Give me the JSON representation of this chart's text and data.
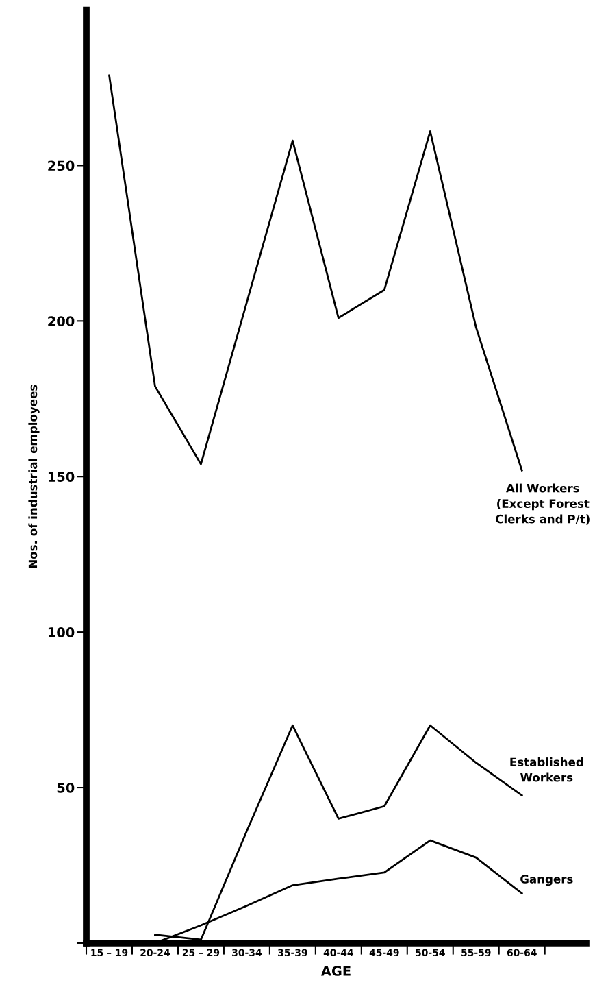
{
  "chart_data": {
    "type": "line",
    "xlabel": "AGE",
    "ylabel": "Nos. of industrial employees",
    "categories": [
      "15 – 19",
      "20-24",
      "25 – 29",
      "30-34",
      "35-39",
      "40-44",
      "45-49",
      "50-54",
      "55-59",
      "60-64"
    ],
    "series": [
      {
        "name": "All Workers\n(Except Forest\nClerks and P/t)",
        "color": "#000000",
        "values": [
          279,
          179,
          154,
          206,
          258,
          201,
          210,
          261,
          198,
          152
        ]
      },
      {
        "name": "Established\nWorkers",
        "color": "#000000",
        "values": [
          null,
          2.7,
          1.1,
          36,
          70,
          40,
          44,
          70,
          58,
          47.5
        ]
      },
      {
        "name": "Gangers",
        "color": "#000000",
        "values": [
          null,
          0,
          5.7,
          12,
          18.6,
          20.7,
          22.7,
          33,
          27.5,
          16
        ]
      }
    ],
    "ylim": [
      0,
      300
    ],
    "yticks": [
      {
        "value": 0,
        "label": null
      },
      50,
      100,
      150,
      200,
      250
    ],
    "grid": false,
    "legend": false,
    "marker": "none",
    "line_style": "solid"
  }
}
